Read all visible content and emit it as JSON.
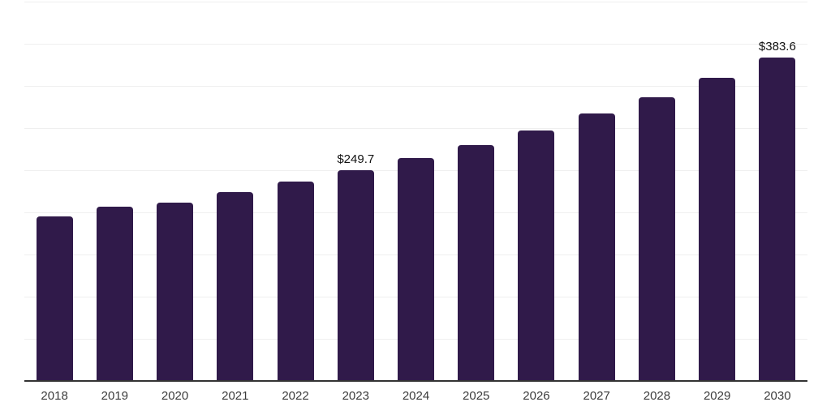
{
  "chart_data": {
    "type": "bar",
    "title": "",
    "xlabel": "",
    "ylabel": "",
    "categories": [
      "2018",
      "2019",
      "2020",
      "2021",
      "2022",
      "2023",
      "2024",
      "2025",
      "2026",
      "2027",
      "2028",
      "2029",
      "2030"
    ],
    "values": [
      195.4,
      207.2,
      211.3,
      224.0,
      236.3,
      249.7,
      264.2,
      280.1,
      297.4,
      316.9,
      336.9,
      359.2,
      383.6
    ],
    "data_labels": [
      {
        "category": "2023",
        "text": "$249.7"
      },
      {
        "category": "2030",
        "text": "$383.6"
      }
    ],
    "ylim": [
      0,
      450
    ],
    "gridline_interval": 50,
    "y_tick_labels_visible": false,
    "grid": "horizontal-only",
    "legend": "none",
    "colors": {
      "bar": "#301a4a",
      "gridline": "#efefef",
      "axis_line": "#333333",
      "value_label": "#111111",
      "tick_label": "#3b3b3b",
      "background": "#ffffff"
    }
  }
}
